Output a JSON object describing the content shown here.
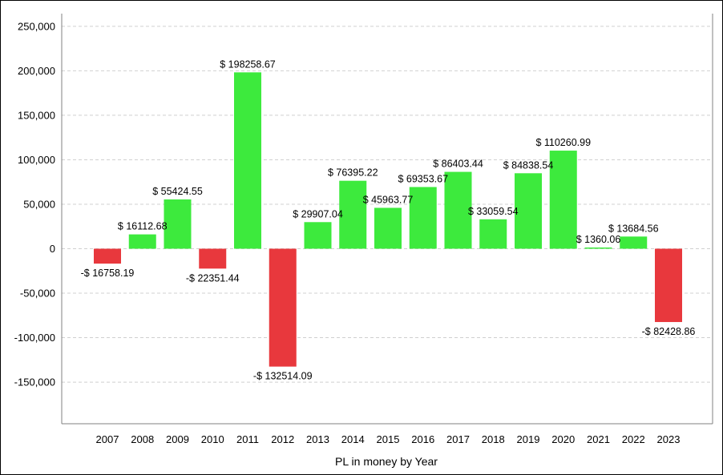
{
  "chart_data": {
    "type": "bar",
    "xlabel": "PL in money by Year",
    "ylabel": "",
    "ylim": [
      -195000,
      260000
    ],
    "yticks": [
      250000,
      200000,
      150000,
      100000,
      50000,
      0,
      -50000,
      -100000,
      -150000
    ],
    "ytick_labels": [
      "250,000",
      "200,000",
      "150,000",
      "100,000",
      "50,000",
      "0",
      "-50,000",
      "-100,000",
      "-150,000"
    ],
    "grid": true,
    "categories": [
      "2007",
      "2008",
      "2009",
      "2010",
      "2011",
      "2012",
      "2013",
      "2014",
      "2015",
      "2016",
      "2017",
      "2018",
      "2019",
      "2020",
      "2021",
      "2022",
      "2023"
    ],
    "values": [
      -16758.19,
      16112.68,
      55424.55,
      -22351.44,
      198258.67,
      -132514.09,
      29907.04,
      76395.22,
      45963.77,
      69353.67,
      86403.44,
      33059.54,
      84838.54,
      110260.99,
      1360.06,
      13684.56,
      -82428.86
    ],
    "data_labels": [
      "-$ 16758.19",
      "$ 16112.68",
      "$ 55424.55",
      "-$ 22351.44",
      "$ 198258.67",
      "-$ 132514.09",
      "$ 29907.04",
      "$ 76395.22",
      "$ 45963.77",
      "$ 69353.67",
      "$ 86403.44",
      "$ 33059.54",
      "$ 84838.54",
      "$ 110260.99",
      "$ 1360.06",
      "$ 13684.56",
      "-$ 82428.86"
    ],
    "colors": {
      "positive": "#3dea3d",
      "negative": "#e8383d",
      "axis": "#808080",
      "grid": "#d0d0d0"
    }
  }
}
